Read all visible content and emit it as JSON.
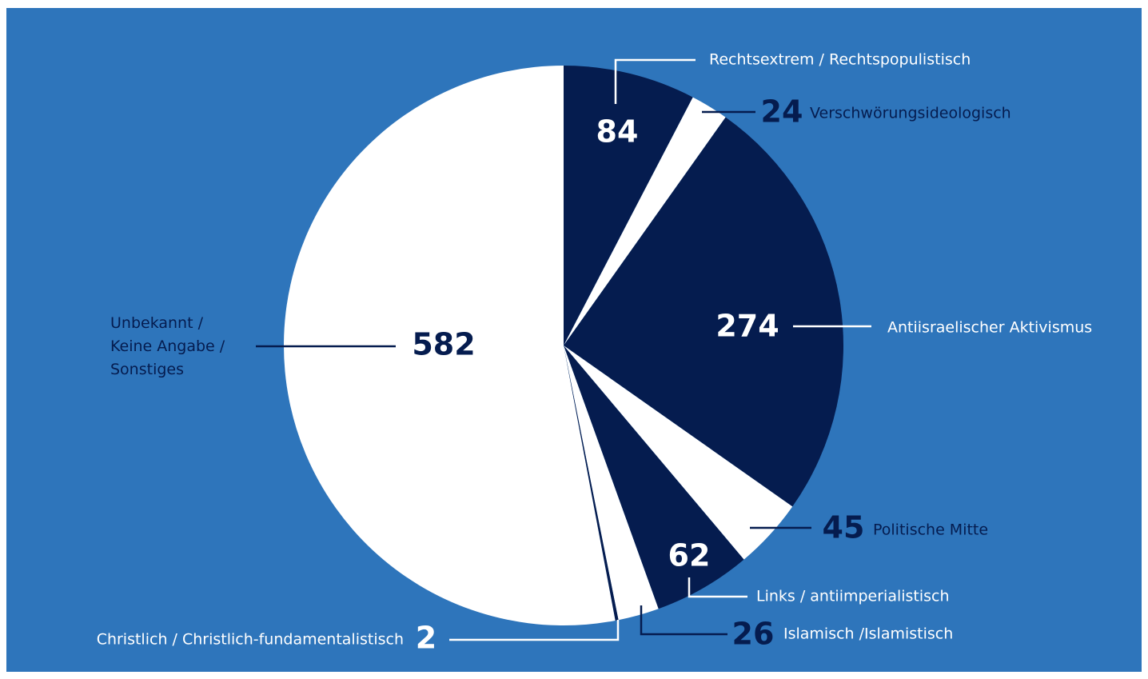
{
  "chart_data": {
    "type": "pie",
    "categories": [
      "Rechtsextrem / Rechtspopulistisch",
      "Verschwörungsideologisch",
      "Antiisraelischer Aktivismus",
      "Politische Mitte",
      "Links / antiimperialistisch",
      "Islamisch /Islamistisch",
      "Christlich / Christlich-fundamentalistisch",
      "Unbekannt / Keine Angabe / Sonstiges"
    ],
    "values": [
      84,
      24,
      274,
      45,
      62,
      26,
      2,
      582
    ],
    "colors": [
      "#051c4f",
      "#ffffff",
      "#051c4f",
      "#ffffff",
      "#051c4f",
      "#ffffff",
      "#051c4f",
      "#ffffff"
    ],
    "background": "#2e75bb"
  }
}
